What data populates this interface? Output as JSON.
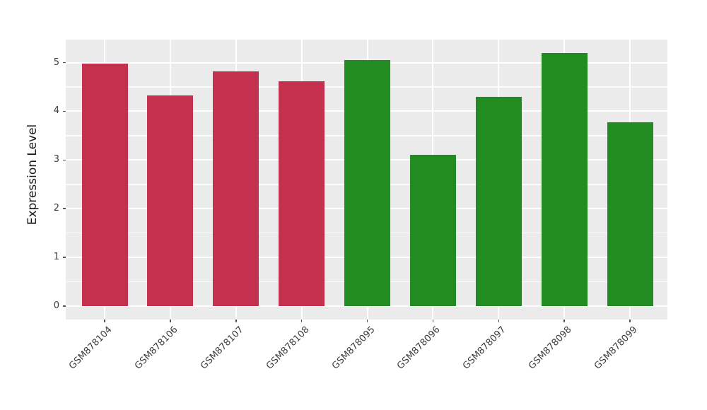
{
  "figure": {
    "background": "#FFFFFF",
    "panel_background": "#EBEBEB",
    "grid_color": "#FFFFFF",
    "tick_label_color": "#3d3d3d",
    "axis_title_color": "#1a1a1a"
  },
  "chart_data": {
    "type": "bar",
    "title": "",
    "xlabel": "",
    "ylabel": "Expression Level",
    "categories": [
      "GSM878104",
      "GSM878106",
      "GSM878107",
      "GSM878108",
      "GSM878095",
      "GSM878096",
      "GSM878097",
      "GSM878098",
      "GSM878099"
    ],
    "values": [
      4.98,
      4.33,
      4.82,
      4.61,
      5.05,
      3.1,
      4.29,
      5.19,
      3.78
    ],
    "bar_colors": [
      "#C3314F",
      "#C3314F",
      "#C3314F",
      "#C3314F",
      "#228B22",
      "#228B22",
      "#228B22",
      "#228B22",
      "#228B22"
    ],
    "y_ticks": [
      0,
      1,
      2,
      3,
      4,
      5
    ],
    "y_minor_ticks": [
      0.5,
      1.5,
      2.5,
      3.5,
      4.5
    ],
    "ylim": [
      -0.27,
      5.46
    ],
    "grid": true,
    "legend": false,
    "x_tick_rotation_deg": 45
  }
}
